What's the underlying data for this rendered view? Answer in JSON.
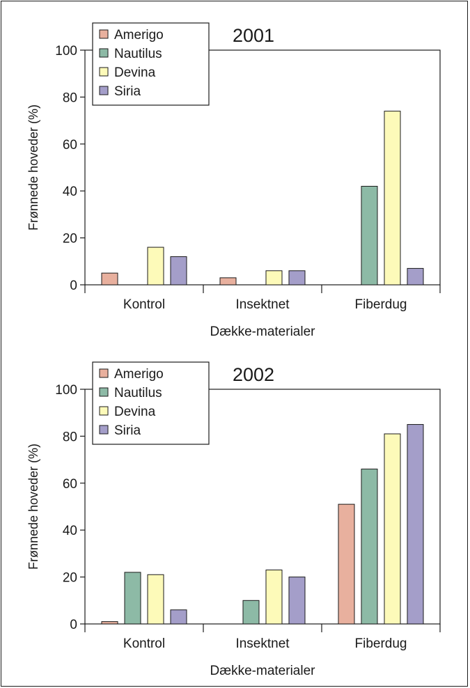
{
  "chart_data": [
    {
      "type": "bar",
      "title": "2001",
      "xlabel": "Dække-materialer",
      "ylabel": "Frønnede hoveder (%)",
      "ylim": [
        0,
        100
      ],
      "yticks": [
        "0",
        "20",
        "40",
        "60",
        "80",
        "100"
      ],
      "categories": [
        "Kontrol",
        "Insektnet",
        "Fiberdug"
      ],
      "legend_position": "top-left",
      "grid": false,
      "series": [
        {
          "name": "Amerigo",
          "color": "#e8b09e",
          "values": [
            5,
            3,
            0
          ]
        },
        {
          "name": "Nautilus",
          "color": "#8dbaa6",
          "values": [
            0,
            0,
            42
          ]
        },
        {
          "name": "Devina",
          "color": "#fdfab9",
          "values": [
            16,
            6,
            74
          ]
        },
        {
          "name": "Siria",
          "color": "#a49ec9",
          "values": [
            12,
            6,
            7
          ]
        }
      ]
    },
    {
      "type": "bar",
      "title": "2002",
      "xlabel": "Dække-materialer",
      "ylabel": "Frønnede hoveder (%)",
      "ylim": [
        0,
        100
      ],
      "yticks": [
        "0",
        "20",
        "40",
        "60",
        "80",
        "100"
      ],
      "categories": [
        "Kontrol",
        "Insektnet",
        "Fiberdug"
      ],
      "legend_position": "top-left",
      "grid": false,
      "series": [
        {
          "name": "Amerigo",
          "color": "#e8b09e",
          "values": [
            1,
            0,
            51
          ]
        },
        {
          "name": "Nautilus",
          "color": "#8dbaa6",
          "values": [
            22,
            10,
            66
          ]
        },
        {
          "name": "Devina",
          "color": "#fdfab9",
          "values": [
            21,
            23,
            81
          ]
        },
        {
          "name": "Siria",
          "color": "#a49ec9",
          "values": [
            6,
            20,
            85
          ]
        }
      ]
    }
  ]
}
